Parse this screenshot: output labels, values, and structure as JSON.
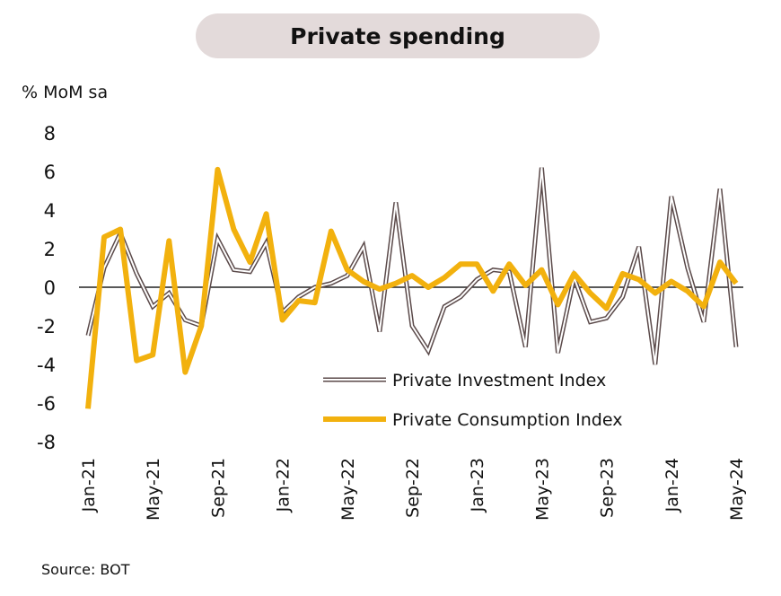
{
  "chart_data": {
    "type": "line",
    "title": "Private spending",
    "ylabel": "% MoM sa",
    "ylim": [
      -8,
      8
    ],
    "yticks": [
      8,
      6,
      4,
      2,
      0,
      -2,
      -4,
      -6,
      -8
    ],
    "x": [
      "Jan-21",
      "Feb-21",
      "Mar-21",
      "Apr-21",
      "May-21",
      "Jun-21",
      "Jul-21",
      "Aug-21",
      "Sep-21",
      "Oct-21",
      "Nov-21",
      "Dec-21",
      "Jan-22",
      "Feb-22",
      "Mar-22",
      "Apr-22",
      "May-22",
      "Jun-22",
      "Jul-22",
      "Aug-22",
      "Sep-22",
      "Oct-22",
      "Nov-22",
      "Dec-22",
      "Jan-23",
      "Feb-23",
      "Mar-23",
      "Apr-23",
      "May-23",
      "Jun-23",
      "Jul-23",
      "Aug-23",
      "Sep-23",
      "Oct-23",
      "Nov-23",
      "Dec-23",
      "Jan-24",
      "Feb-24",
      "Mar-24",
      "Apr-24",
      "May-24"
    ],
    "xticklabels": [
      "Jan-21",
      "May-21",
      "Sep-21",
      "Jan-22",
      "May-22",
      "Sep-22",
      "Jan-23",
      "May-23",
      "Sep-23",
      "Jan-24",
      "May-24"
    ],
    "series": [
      {
        "name": "Private Investment Index",
        "color": "#5b4a4a",
        "style": "double-line",
        "values": [
          -2.5,
          1.0,
          2.8,
          0.7,
          -1.0,
          -0.3,
          -1.7,
          -2.0,
          2.5,
          0.9,
          0.8,
          2.3,
          -1.3,
          -0.5,
          0.0,
          0.2,
          0.6,
          2.1,
          -2.3,
          4.4,
          -2.0,
          -3.3,
          -1.0,
          -0.5,
          0.4,
          0.9,
          0.8,
          -3.1,
          6.2,
          -3.4,
          0.5,
          -1.8,
          -1.6,
          -0.5,
          2.1,
          -4.0,
          4.7,
          1.0,
          -1.8,
          5.1,
          -3.1
        ]
      },
      {
        "name": "Private Consumption Index",
        "color": "#f2b10e",
        "style": "thick-line",
        "values": [
          -6.3,
          2.6,
          3.0,
          -3.8,
          -3.5,
          2.4,
          -4.4,
          -2.0,
          6.1,
          3.0,
          1.3,
          3.8,
          -1.7,
          -0.7,
          -0.8,
          2.9,
          0.9,
          0.3,
          -0.1,
          0.2,
          0.6,
          0.0,
          0.5,
          1.2,
          1.2,
          -0.2,
          1.2,
          0.1,
          0.9,
          -0.9,
          0.7,
          -0.3,
          -1.1,
          0.7,
          0.4,
          -0.3,
          0.3,
          -0.2,
          -1.0,
          1.3,
          0.2
        ]
      }
    ]
  },
  "source": "Source: BOT"
}
